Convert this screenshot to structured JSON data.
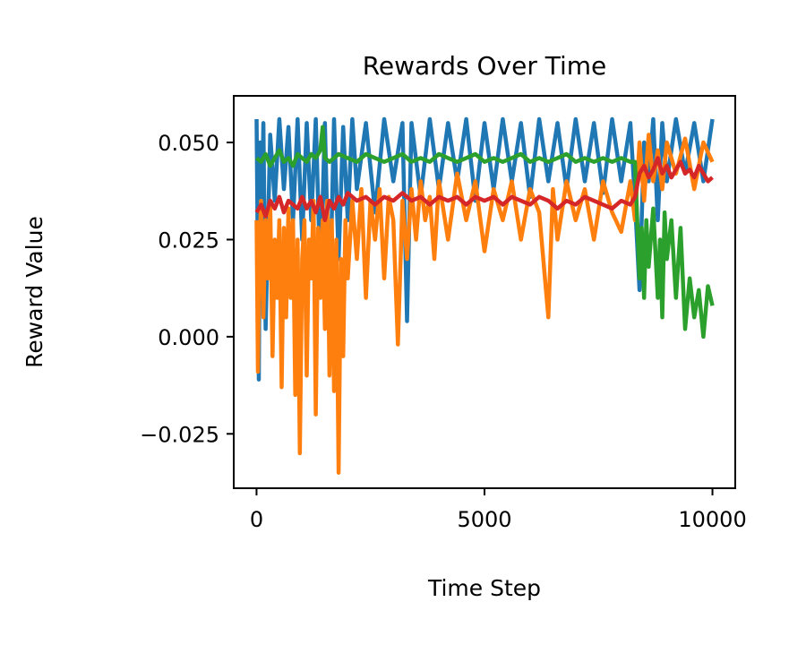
{
  "chart_data": {
    "type": "line",
    "title": "Rewards Over Time",
    "xlabel": "Time Step",
    "ylabel": "Reward Value",
    "xlim": [
      -500,
      10500
    ],
    "ylim": [
      -0.039,
      0.062
    ],
    "xticks": [
      0,
      5000,
      10000
    ],
    "xtick_labels": [
      "0",
      "5000",
      "10000"
    ],
    "yticks": [
      -0.025,
      0.0,
      0.025,
      0.05
    ],
    "ytick_labels": [
      "−0.025",
      "0.000",
      "0.025",
      "0.050"
    ],
    "grid": false,
    "legend": "none",
    "series": [
      {
        "color": "#1f77b4",
        "x": [
          0,
          20,
          50,
          80,
          100,
          150,
          200,
          300,
          400,
          500,
          600,
          700,
          800,
          900,
          1000,
          1100,
          1200,
          1300,
          1400,
          1500,
          1600,
          1700,
          1800,
          1900,
          2000,
          2100,
          2200,
          2400,
          2600,
          2800,
          3000,
          3200,
          3300,
          3400,
          3600,
          3800,
          4000,
          4200,
          4400,
          4600,
          4800,
          5000,
          5200,
          5400,
          5600,
          5800,
          6000,
          6200,
          6400,
          6600,
          6800,
          7000,
          7200,
          7400,
          7600,
          7800,
          8000,
          8200,
          8300,
          8400,
          8500,
          8600,
          8700,
          8800,
          8900,
          9000,
          9200,
          9400,
          9600,
          9800,
          10000
        ],
        "y": [
          0.056,
          0.03,
          -0.011,
          0.05,
          0.02,
          0.055,
          0.002,
          0.052,
          0.035,
          0.056,
          0.038,
          0.054,
          0.03,
          0.056,
          0.025,
          0.055,
          0.03,
          0.056,
          0.015,
          0.055,
          0.005,
          0.056,
          0.02,
          0.054,
          0.03,
          0.056,
          0.038,
          0.055,
          0.032,
          0.056,
          0.04,
          0.055,
          0.004,
          0.055,
          0.036,
          0.056,
          0.038,
          0.055,
          0.04,
          0.056,
          0.035,
          0.055,
          0.038,
          0.056,
          0.04,
          0.055,
          0.036,
          0.056,
          0.04,
          0.055,
          0.038,
          0.056,
          0.04,
          0.055,
          0.037,
          0.056,
          0.04,
          0.055,
          0.035,
          0.012,
          0.05,
          0.04,
          0.056,
          0.03,
          0.055,
          0.04,
          0.056,
          0.042,
          0.055,
          0.04,
          0.056
        ]
      },
      {
        "color": "#ff7f0e",
        "x": [
          0,
          30,
          60,
          100,
          150,
          200,
          250,
          300,
          350,
          400,
          450,
          500,
          550,
          600,
          650,
          700,
          750,
          800,
          850,
          900,
          950,
          1000,
          1050,
          1100,
          1150,
          1200,
          1250,
          1300,
          1350,
          1400,
          1450,
          1500,
          1550,
          1600,
          1650,
          1700,
          1750,
          1800,
          1850,
          1900,
          1950,
          2000,
          2100,
          2200,
          2300,
          2400,
          2500,
          2600,
          2700,
          2800,
          2900,
          3000,
          3100,
          3200,
          3300,
          3400,
          3500,
          3600,
          3700,
          3800,
          3900,
          4000,
          4200,
          4400,
          4600,
          4800,
          5000,
          5200,
          5400,
          5600,
          5800,
          6000,
          6200,
          6400,
          6500,
          6600,
          6800,
          7000,
          7200,
          7400,
          7600,
          7800,
          8000,
          8200,
          8300,
          8400,
          8500,
          8600,
          8700,
          8800,
          8900,
          9000,
          9200,
          9400,
          9600,
          9800,
          10000
        ],
        "y": [
          0.03,
          -0.009,
          0.02,
          0.035,
          0.005,
          0.03,
          0.015,
          0.035,
          -0.005,
          0.025,
          0.01,
          0.03,
          -0.013,
          0.028,
          0.005,
          0.033,
          0.01,
          0.03,
          -0.015,
          0.025,
          -0.03,
          0.02,
          0.03,
          -0.01,
          0.025,
          0.015,
          0.035,
          -0.02,
          0.028,
          0.01,
          0.03,
          0.002,
          0.035,
          -0.01,
          0.03,
          -0.014,
          0.025,
          -0.035,
          0.02,
          -0.005,
          0.03,
          0.015,
          0.035,
          0.02,
          0.038,
          0.01,
          0.035,
          0.025,
          0.038,
          0.015,
          0.036,
          0.03,
          -0.002,
          0.035,
          0.02,
          0.038,
          0.025,
          0.04,
          0.03,
          0.036,
          0.02,
          0.04,
          0.025,
          0.042,
          0.03,
          0.04,
          0.022,
          0.038,
          0.03,
          0.04,
          0.025,
          0.038,
          0.032,
          0.005,
          0.038,
          0.025,
          0.04,
          0.03,
          0.038,
          0.025,
          0.04,
          0.032,
          0.027,
          0.04,
          0.03,
          0.05,
          0.035,
          0.052,
          0.04,
          0.048,
          0.038,
          0.05,
          0.042,
          0.051,
          0.038,
          0.05,
          0.045
        ]
      },
      {
        "color": "#2ca02c",
        "x": [
          0,
          100,
          200,
          300,
          400,
          500,
          600,
          700,
          800,
          900,
          1000,
          1100,
          1200,
          1300,
          1400,
          1450,
          1500,
          1600,
          1800,
          2000,
          2200,
          2400,
          2600,
          2800,
          3000,
          3200,
          3400,
          3600,
          3800,
          4000,
          4200,
          4400,
          4600,
          4800,
          5000,
          5200,
          5400,
          5600,
          5800,
          6000,
          6200,
          6400,
          6600,
          6800,
          7000,
          7200,
          7400,
          7600,
          7800,
          8000,
          8200,
          8300,
          8400,
          8450,
          8500,
          8550,
          8600,
          8700,
          8800,
          8850,
          8900,
          8950,
          9000,
          9100,
          9200,
          9300,
          9400,
          9500,
          9600,
          9700,
          9800,
          9900,
          10000
        ],
        "y": [
          0.046,
          0.045,
          0.047,
          0.044,
          0.046,
          0.048,
          0.045,
          0.046,
          0.044,
          0.047,
          0.046,
          0.045,
          0.047,
          0.046,
          0.048,
          0.054,
          0.046,
          0.045,
          0.047,
          0.046,
          0.045,
          0.047,
          0.046,
          0.045,
          0.046,
          0.047,
          0.045,
          0.046,
          0.045,
          0.047,
          0.046,
          0.045,
          0.046,
          0.047,
          0.045,
          0.046,
          0.045,
          0.046,
          0.047,
          0.045,
          0.046,
          0.045,
          0.046,
          0.047,
          0.045,
          0.046,
          0.045,
          0.046,
          0.045,
          0.046,
          0.045,
          0.045,
          0.015,
          0.028,
          0.01,
          0.03,
          0.018,
          0.033,
          0.01,
          0.025,
          0.005,
          0.032,
          0.02,
          0.03,
          0.01,
          0.028,
          0.002,
          0.015,
          0.005,
          0.012,
          0.0,
          0.013,
          0.008
        ]
      },
      {
        "color": "#d62728",
        "x": [
          0,
          100,
          200,
          300,
          400,
          500,
          600,
          700,
          800,
          900,
          1000,
          1100,
          1200,
          1300,
          1400,
          1500,
          1600,
          1700,
          1800,
          1900,
          2000,
          2200,
          2400,
          2600,
          2800,
          3000,
          3200,
          3400,
          3600,
          3800,
          4000,
          4200,
          4400,
          4600,
          4800,
          5000,
          5200,
          5400,
          5600,
          5800,
          6000,
          6200,
          6400,
          6600,
          6800,
          7000,
          7200,
          7400,
          7600,
          7800,
          8000,
          8200,
          8300,
          8400,
          8500,
          8600,
          8700,
          8800,
          8900,
          9000,
          9100,
          9200,
          9300,
          9400,
          9500,
          9600,
          9700,
          9800,
          9900,
          10000
        ],
        "y": [
          0.032,
          0.034,
          0.031,
          0.035,
          0.033,
          0.036,
          0.032,
          0.035,
          0.034,
          0.033,
          0.036,
          0.033,
          0.035,
          0.032,
          0.036,
          0.03,
          0.035,
          0.033,
          0.036,
          0.034,
          0.037,
          0.035,
          0.036,
          0.034,
          0.036,
          0.035,
          0.037,
          0.035,
          0.036,
          0.034,
          0.036,
          0.035,
          0.036,
          0.034,
          0.036,
          0.035,
          0.036,
          0.034,
          0.036,
          0.035,
          0.034,
          0.036,
          0.035,
          0.033,
          0.035,
          0.034,
          0.036,
          0.035,
          0.034,
          0.033,
          0.035,
          0.034,
          0.036,
          0.042,
          0.044,
          0.041,
          0.043,
          0.046,
          0.042,
          0.044,
          0.041,
          0.043,
          0.045,
          0.042,
          0.043,
          0.041,
          0.044,
          0.042,
          0.04,
          0.041
        ]
      }
    ]
  }
}
